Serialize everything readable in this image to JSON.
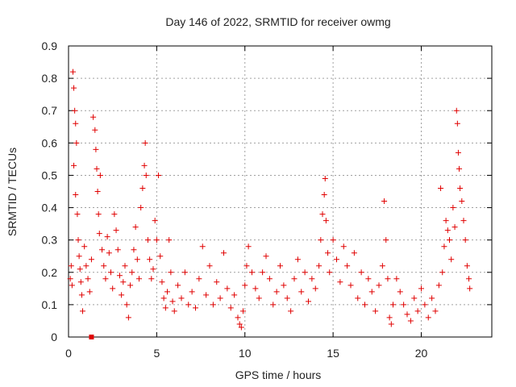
{
  "chart_data": {
    "type": "scatter",
    "title": "Day 146 of 2022, SRMTID for receiver owmg",
    "xlabel": "GPS time / hours",
    "ylabel": "SRMTID / TECUs",
    "xlim": [
      0,
      24
    ],
    "ylim": [
      0,
      0.9
    ],
    "x_ticks": [
      0,
      5,
      10,
      15,
      20
    ],
    "y_ticks": [
      0,
      0.1,
      0.2,
      0.3,
      0.4,
      0.5,
      0.6,
      0.7,
      0.8,
      0.9
    ],
    "x_tick_labels": [
      "0",
      "5",
      "10",
      "15",
      "20"
    ],
    "y_tick_labels": [
      "0",
      "0.1",
      "0.2",
      "0.3",
      "0.4",
      "0.5",
      "0.6",
      "0.7",
      "0.8",
      "0.9"
    ],
    "grid": true,
    "marker": "+",
    "color": "#e00000",
    "series": [
      {
        "name": "SRMTID",
        "points": [
          [
            0.1,
            0.18
          ],
          [
            0.15,
            0.22
          ],
          [
            0.2,
            0.16
          ],
          [
            0.25,
            0.82
          ],
          [
            0.3,
            0.77
          ],
          [
            0.35,
            0.7
          ],
          [
            0.4,
            0.66
          ],
          [
            0.45,
            0.6
          ],
          [
            0.3,
            0.53
          ],
          [
            0.4,
            0.44
          ],
          [
            0.5,
            0.38
          ],
          [
            0.55,
            0.3
          ],
          [
            0.6,
            0.25
          ],
          [
            0.65,
            0.21
          ],
          [
            0.7,
            0.17
          ],
          [
            0.75,
            0.13
          ],
          [
            0.8,
            0.08
          ],
          [
            0.9,
            0.28
          ],
          [
            1.0,
            0.22
          ],
          [
            1.1,
            0.18
          ],
          [
            1.2,
            0.14
          ],
          [
            1.3,
            0.24
          ],
          [
            1.4,
            0.68
          ],
          [
            1.5,
            0.64
          ],
          [
            1.55,
            0.58
          ],
          [
            1.6,
            0.52
          ],
          [
            1.65,
            0.45
          ],
          [
            1.7,
            0.38
          ],
          [
            1.75,
            0.32
          ],
          [
            1.8,
            0.5
          ],
          [
            1.9,
            0.27
          ],
          [
            2.0,
            0.22
          ],
          [
            2.1,
            0.18
          ],
          [
            2.2,
            0.31
          ],
          [
            2.3,
            0.26
          ],
          [
            2.4,
            0.2
          ],
          [
            2.5,
            0.15
          ],
          [
            2.6,
            0.38
          ],
          [
            2.7,
            0.33
          ],
          [
            2.8,
            0.27
          ],
          [
            2.9,
            0.19
          ],
          [
            3.0,
            0.13
          ],
          [
            3.1,
            0.17
          ],
          [
            3.2,
            0.22
          ],
          [
            3.3,
            0.1
          ],
          [
            3.4,
            0.06
          ],
          [
            3.5,
            0.16
          ],
          [
            3.6,
            0.2
          ],
          [
            3.7,
            0.27
          ],
          [
            3.8,
            0.34
          ],
          [
            3.9,
            0.24
          ],
          [
            4.0,
            0.18
          ],
          [
            4.1,
            0.4
          ],
          [
            4.2,
            0.46
          ],
          [
            4.3,
            0.53
          ],
          [
            4.35,
            0.6
          ],
          [
            4.4,
            0.5
          ],
          [
            4.5,
            0.3
          ],
          [
            4.6,
            0.24
          ],
          [
            4.7,
            0.18
          ],
          [
            4.8,
            0.21
          ],
          [
            4.9,
            0.36
          ],
          [
            5.0,
            0.3
          ],
          [
            5.1,
            0.5
          ],
          [
            5.2,
            0.25
          ],
          [
            5.3,
            0.17
          ],
          [
            5.4,
            0.12
          ],
          [
            5.5,
            0.09
          ],
          [
            5.6,
            0.14
          ],
          [
            5.7,
            0.3
          ],
          [
            5.8,
            0.2
          ],
          [
            5.9,
            0.11
          ],
          [
            6.0,
            0.08
          ],
          [
            6.2,
            0.16
          ],
          [
            6.4,
            0.12
          ],
          [
            6.6,
            0.2
          ],
          [
            6.8,
            0.1
          ],
          [
            7.0,
            0.14
          ],
          [
            7.2,
            0.09
          ],
          [
            7.4,
            0.18
          ],
          [
            7.6,
            0.28
          ],
          [
            7.8,
            0.13
          ],
          [
            8.0,
            0.22
          ],
          [
            8.2,
            0.1
          ],
          [
            8.4,
            0.17
          ],
          [
            8.6,
            0.12
          ],
          [
            8.8,
            0.26
          ],
          [
            9.0,
            0.15
          ],
          [
            9.2,
            0.09
          ],
          [
            9.4,
            0.13
          ],
          [
            9.6,
            0.06
          ],
          [
            9.7,
            0.04
          ],
          [
            9.8,
            0.03
          ],
          [
            9.9,
            0.08
          ],
          [
            10.0,
            0.16
          ],
          [
            10.1,
            0.22
          ],
          [
            10.2,
            0.28
          ],
          [
            10.4,
            0.2
          ],
          [
            10.6,
            0.15
          ],
          [
            10.8,
            0.12
          ],
          [
            11.0,
            0.2
          ],
          [
            11.2,
            0.25
          ],
          [
            11.4,
            0.18
          ],
          [
            11.6,
            0.1
          ],
          [
            11.8,
            0.14
          ],
          [
            12.0,
            0.22
          ],
          [
            12.2,
            0.16
          ],
          [
            12.4,
            0.12
          ],
          [
            12.6,
            0.08
          ],
          [
            12.8,
            0.18
          ],
          [
            13.0,
            0.24
          ],
          [
            13.2,
            0.14
          ],
          [
            13.4,
            0.2
          ],
          [
            13.6,
            0.11
          ],
          [
            13.8,
            0.18
          ],
          [
            14.0,
            0.15
          ],
          [
            14.2,
            0.22
          ],
          [
            14.3,
            0.3
          ],
          [
            14.4,
            0.38
          ],
          [
            14.5,
            0.44
          ],
          [
            14.55,
            0.49
          ],
          [
            14.6,
            0.36
          ],
          [
            14.7,
            0.26
          ],
          [
            14.8,
            0.2
          ],
          [
            15.0,
            0.3
          ],
          [
            15.2,
            0.24
          ],
          [
            15.4,
            0.17
          ],
          [
            15.6,
            0.28
          ],
          [
            15.8,
            0.22
          ],
          [
            16.0,
            0.16
          ],
          [
            16.2,
            0.26
          ],
          [
            16.4,
            0.12
          ],
          [
            16.6,
            0.2
          ],
          [
            16.8,
            0.1
          ],
          [
            17.0,
            0.18
          ],
          [
            17.2,
            0.14
          ],
          [
            17.4,
            0.08
          ],
          [
            17.6,
            0.16
          ],
          [
            17.8,
            0.22
          ],
          [
            17.9,
            0.42
          ],
          [
            18.0,
            0.3
          ],
          [
            18.1,
            0.18
          ],
          [
            18.2,
            0.06
          ],
          [
            18.3,
            0.04
          ],
          [
            18.4,
            0.1
          ],
          [
            18.6,
            0.18
          ],
          [
            18.8,
            0.14
          ],
          [
            19.0,
            0.1
          ],
          [
            19.2,
            0.07
          ],
          [
            19.4,
            0.05
          ],
          [
            19.6,
            0.12
          ],
          [
            19.8,
            0.08
          ],
          [
            20.0,
            0.15
          ],
          [
            20.2,
            0.1
          ],
          [
            20.4,
            0.06
          ],
          [
            20.6,
            0.12
          ],
          [
            20.8,
            0.08
          ],
          [
            21.0,
            0.16
          ],
          [
            21.1,
            0.46
          ],
          [
            21.2,
            0.2
          ],
          [
            21.3,
            0.28
          ],
          [
            21.4,
            0.36
          ],
          [
            21.5,
            0.33
          ],
          [
            21.6,
            0.3
          ],
          [
            21.7,
            0.24
          ],
          [
            21.8,
            0.4
          ],
          [
            21.9,
            0.34
          ],
          [
            22.0,
            0.7
          ],
          [
            22.05,
            0.66
          ],
          [
            22.1,
            0.57
          ],
          [
            22.15,
            0.52
          ],
          [
            22.2,
            0.46
          ],
          [
            22.3,
            0.42
          ],
          [
            22.4,
            0.36
          ],
          [
            22.5,
            0.3
          ],
          [
            22.6,
            0.22
          ],
          [
            22.7,
            0.18
          ],
          [
            22.75,
            0.15
          ]
        ]
      }
    ],
    "outlier_square": [
      1.3,
      0.0
    ]
  }
}
